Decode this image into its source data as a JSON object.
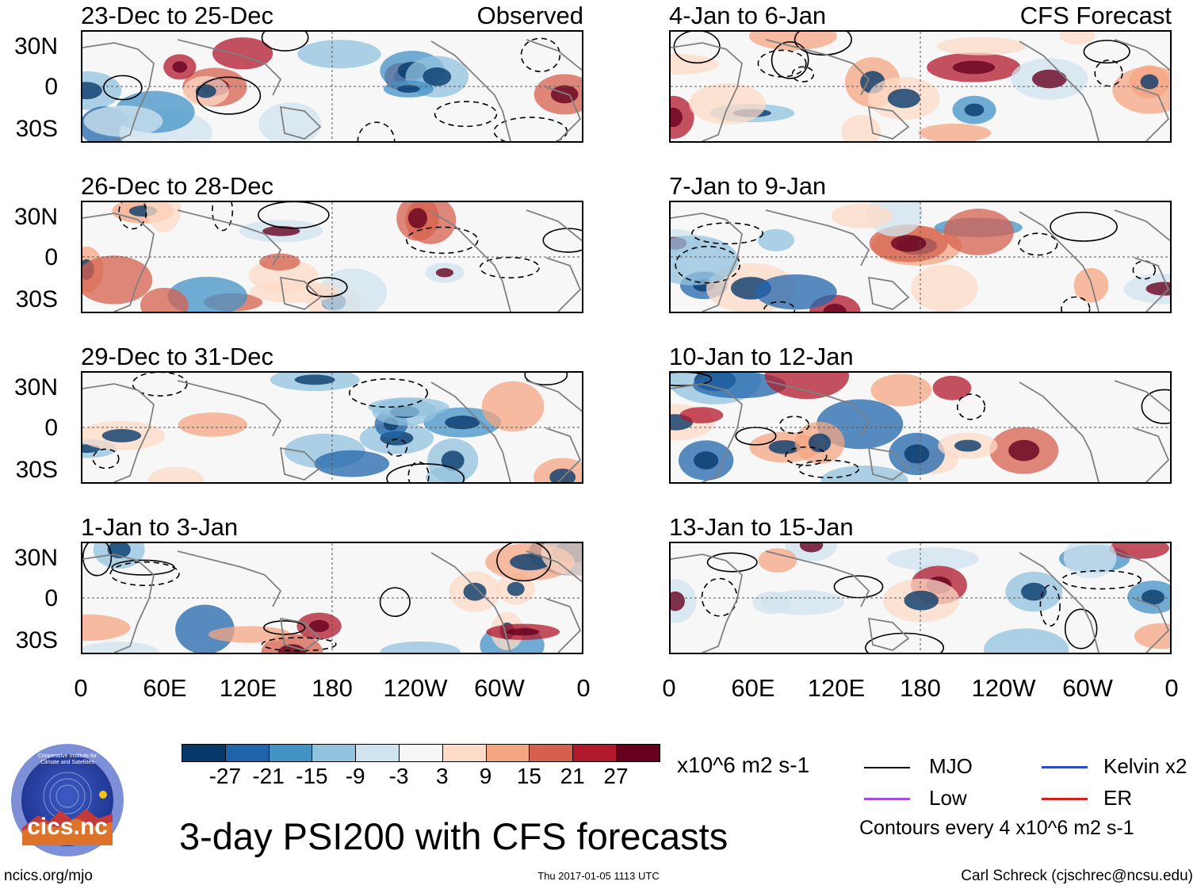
{
  "left_panels": [
    {
      "title": "23-Dec to 25-Dec",
      "tag": "Observed"
    },
    {
      "title": "26-Dec to 28-Dec",
      "tag": ""
    },
    {
      "title": "29-Dec to 31-Dec",
      "tag": ""
    },
    {
      "title": "1-Jan to 3-Jan",
      "tag": ""
    }
  ],
  "right_panels": [
    {
      "title": "4-Jan to 6-Jan",
      "tag": "CFS Forecast"
    },
    {
      "title": "7-Jan to 9-Jan",
      "tag": ""
    },
    {
      "title": "10-Jan to 12-Jan",
      "tag": ""
    },
    {
      "title": "13-Jan to 15-Jan",
      "tag": ""
    }
  ],
  "y_ticks": [
    "30N",
    "0",
    "30S"
  ],
  "x_ticks": [
    "0",
    "60E",
    "120E",
    "180",
    "120W",
    "60W",
    "0"
  ],
  "colorbar": {
    "colors": [
      "#073a6b",
      "#1f64ab",
      "#4292c6",
      "#91c2de",
      "#d0e4ef",
      "#f7f7f7",
      "#fddbc7",
      "#f4a582",
      "#d6604d",
      "#b2182b",
      "#67001f"
    ],
    "labels": [
      "-27",
      "-21",
      "-15",
      "-9",
      "-3",
      "3",
      "9",
      "15",
      "21",
      "27"
    ],
    "units": "x10^6 m2 s-1"
  },
  "legend": {
    "mjo": "MJO",
    "kelvin": "Kelvin x2",
    "low": "Low",
    "er": "ER",
    "note": "Contours every 4 x10^6 m2 s-1"
  },
  "footer": {
    "main_title": "3-day PSI200 with CFS forecasts",
    "left": "ncics.org/mjo",
    "center": "Thu 2017-01-05 1113 UTC",
    "right": "Carl Schreck (cjschrec@ncsu.edu)",
    "logo_text": "cics.nc",
    "logo_ring_text": "Cooperative Institute for Climate and Satellites"
  }
}
